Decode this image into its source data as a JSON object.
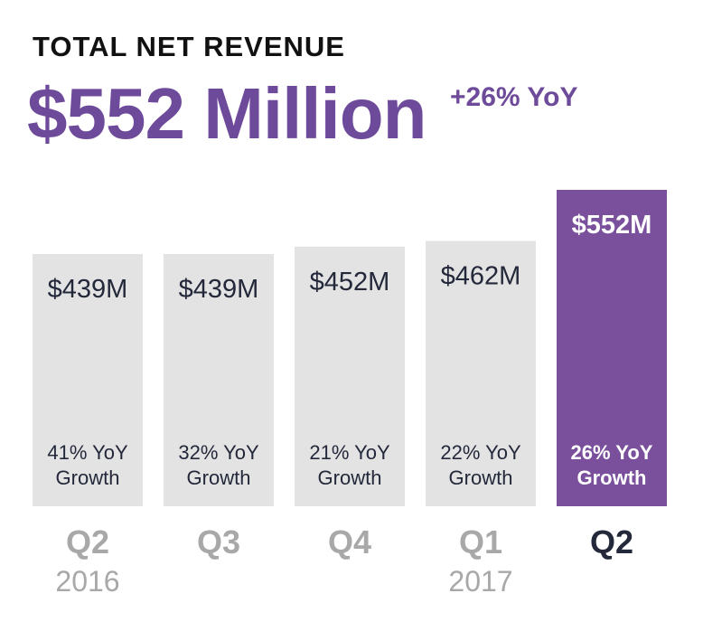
{
  "header": {
    "title": "TOTAL NET REVENUE",
    "value": "$552 Million",
    "growth": "+26% YoY"
  },
  "colors": {
    "accent": "#7A509C",
    "bar_default": "#E3E3E3",
    "label_dark": "#23283A",
    "label_muted": "#A8A8A8"
  },
  "chart_data": {
    "type": "bar",
    "categories": [
      "Q2",
      "Q3",
      "Q4",
      "Q1",
      "Q2"
    ],
    "years": [
      "2016",
      "",
      "",
      "2017",
      ""
    ],
    "values": [
      439,
      439,
      452,
      462,
      552
    ],
    "value_labels": [
      "$439M",
      "$439M",
      "$452M",
      "$462M",
      "$552M"
    ],
    "growth_line1": [
      "41% YoY",
      "32% YoY",
      "21% YoY",
      "22% YoY",
      "26% YoY"
    ],
    "growth_line2": [
      "Growth",
      "Growth",
      "Growth",
      "Growth",
      "Growth"
    ],
    "highlight_index": 4,
    "unit": "$M",
    "ylim": [
      0,
      552
    ]
  }
}
